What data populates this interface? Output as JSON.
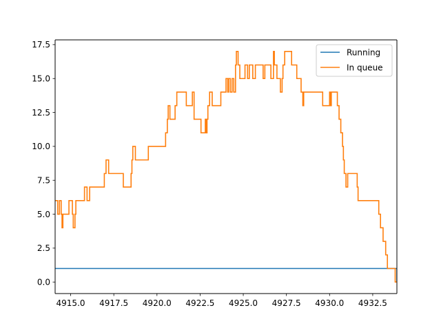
{
  "chart_data": {
    "type": "line",
    "title": "",
    "xlabel": "",
    "ylabel": "",
    "xlim": [
      4914.1,
      4933.9
    ],
    "ylim": [
      -0.85,
      17.85
    ],
    "x_ticks": [
      4915.0,
      4917.5,
      4920.0,
      4922.5,
      4925.0,
      4927.5,
      4930.0,
      4932.5
    ],
    "x_tick_labels": [
      "4915.0",
      "4917.5",
      "4920.0",
      "4922.5",
      "4925.0",
      "4927.5",
      "4930.0",
      "4932.5"
    ],
    "y_ticks": [
      0.0,
      2.5,
      5.0,
      7.5,
      10.0,
      12.5,
      15.0,
      17.5
    ],
    "y_tick_labels": [
      "0.0",
      "2.5",
      "5.0",
      "7.5",
      "10.0",
      "12.5",
      "15.0",
      "17.5"
    ],
    "grid": false,
    "legend_position": "top-right",
    "series": [
      {
        "name": "Running",
        "color": "#1f77b4",
        "step": true,
        "x": [
          4914.1,
          4933.8,
          4933.9
        ],
        "y": [
          1,
          1,
          0
        ]
      },
      {
        "name": "In queue",
        "color": "#ff7f0e",
        "step": true,
        "x": [
          4914.1,
          4914.25,
          4914.35,
          4914.45,
          4914.5,
          4914.55,
          4914.9,
          4915.1,
          4915.15,
          4915.25,
          4915.3,
          4915.8,
          4915.95,
          4916.1,
          4916.4,
          4916.95,
          4917.05,
          4917.2,
          4917.25,
          4918.05,
          4918.5,
          4918.55,
          4918.6,
          4918.75,
          4919.5,
          4920.5,
          4920.6,
          4920.65,
          4920.75,
          4921.05,
          4921.15,
          4921.7,
          4922.05,
          4922.15,
          4922.2,
          4922.55,
          4922.8,
          4922.85,
          4922.9,
          4922.95,
          4923.05,
          4923.2,
          4923.7,
          4924.0,
          4924.1,
          4924.15,
          4924.25,
          4924.35,
          4924.45,
          4924.55,
          4924.6,
          4924.7,
          4924.8,
          4925.1,
          4925.25,
          4925.35,
          4925.55,
          4925.7,
          4926.15,
          4926.25,
          4926.6,
          4926.75,
          4926.8,
          4926.95,
          4927.15,
          4927.25,
          4927.3,
          4927.4,
          4927.8,
          4928.1,
          4928.35,
          4928.45,
          4928.5,
          4929.6,
          4930.0,
          4930.05,
          4930.1,
          4930.45,
          4930.55,
          4930.65,
          4930.75,
          4930.8,
          4930.85,
          4930.95,
          4931.0,
          4931.05,
          4931.6,
          4931.65,
          4932.85,
          4932.95,
          4933.1,
          4933.25,
          4933.35,
          4933.8,
          4933.9
        ],
        "y": [
          6,
          5,
          6,
          5,
          4,
          5,
          6,
          5,
          4,
          5,
          6,
          7,
          6,
          7,
          7,
          8,
          9,
          8,
          8,
          7,
          8,
          9,
          10,
          9,
          10,
          11,
          12,
          13,
          12,
          13,
          14,
          13,
          14,
          12,
          12,
          11,
          12,
          11,
          12,
          13,
          14,
          13,
          14,
          15,
          14,
          15,
          14,
          15,
          14,
          16,
          17,
          16,
          15,
          16,
          15,
          16,
          15,
          16,
          15,
          16,
          15,
          17,
          16,
          15,
          14,
          15,
          16,
          17,
          16,
          15,
          14,
          13,
          14,
          13,
          14,
          13,
          14,
          13,
          12,
          11,
          10,
          9,
          8,
          7,
          7,
          8,
          7,
          6,
          5,
          4,
          3,
          2,
          1,
          0,
          0
        ]
      }
    ]
  }
}
